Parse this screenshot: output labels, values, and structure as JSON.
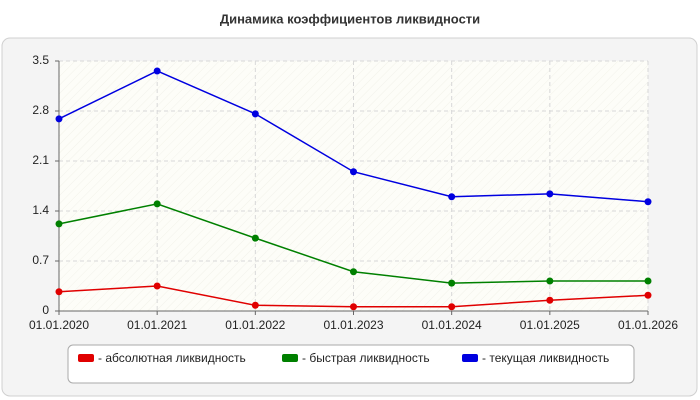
{
  "chart_data": {
    "type": "line",
    "title": "Динамика коэффициентов ликвидности",
    "categories": [
      "01.01.2020",
      "01.01.2021",
      "01.01.2022",
      "01.01.2023",
      "01.01.2024",
      "01.01.2025",
      "01.01.2026"
    ],
    "series": [
      {
        "name": "- абсолютная ликвидность",
        "color": "#e00000",
        "values": [
          0.27,
          0.35,
          0.08,
          0.06,
          0.06,
          0.15,
          0.22
        ]
      },
      {
        "name": "- быстрая ликвидность",
        "color": "#008000",
        "values": [
          1.22,
          1.5,
          1.02,
          0.55,
          0.39,
          0.42,
          0.42
        ]
      },
      {
        "name": "- текущая ликвидность",
        "color": "#0000e0",
        "values": [
          2.69,
          3.36,
          2.76,
          1.95,
          1.6,
          1.64,
          1.53
        ]
      }
    ],
    "ylim": [
      0,
      3.5
    ],
    "yticks": [
      0,
      0.7,
      1.4,
      2.1,
      2.8,
      3.5
    ],
    "grid": true,
    "legend": "bottom"
  }
}
